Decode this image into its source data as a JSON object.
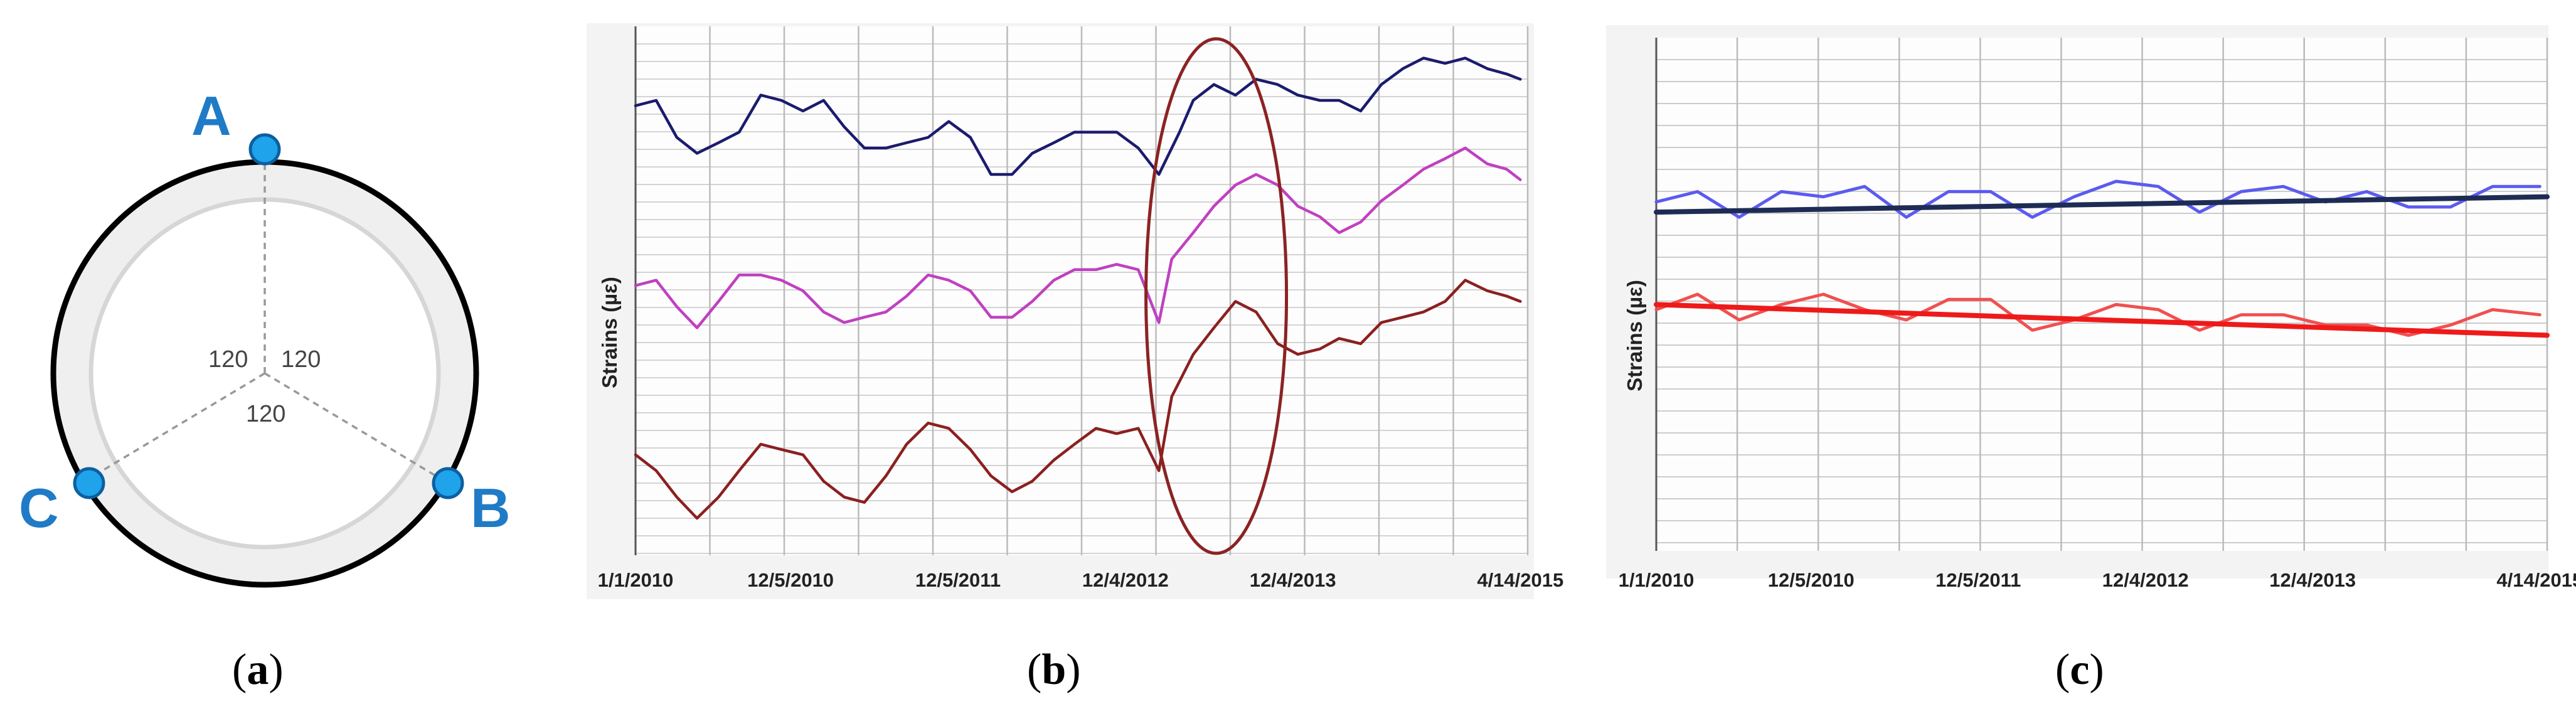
{
  "figure": {
    "panel_labels": [
      {
        "open": "(",
        "letter": "a",
        "close": ")"
      },
      {
        "open": "(",
        "letter": "b",
        "close": ")"
      },
      {
        "open": "(",
        "letter": "c",
        "close": ")"
      }
    ]
  },
  "sensor_ring": {
    "sensors": [
      "A",
      "B",
      "C"
    ],
    "angles": [
      "120",
      "120",
      "120"
    ],
    "sensor_color": "#1f7bc6",
    "ring_color": "#efefef"
  },
  "chart_data": [
    {
      "id": "b",
      "type": "line",
      "title": "",
      "xlabel": "",
      "ylabel": "Strains (µε)",
      "x_tick_labels": [
        "1/1/2010",
        "12/5/2010",
        "12/5/2011",
        "12/4/2012",
        "12/4/2013",
        "4/14/2015"
      ],
      "x_ticks": [
        "2010-01-01",
        "2010-12-05",
        "2011-12-05",
        "2012-12-04",
        "2013-12-04",
        "2015-04-14"
      ],
      "xlim": [
        "2010-01-01",
        "2015-04-30"
      ],
      "ylim": [
        0,
        100
      ],
      "y_tick_labels_shown": false,
      "grid": true,
      "legend": "none",
      "annotation": {
        "type": "ellipse",
        "center_x": "2013-06-20",
        "center_y": 49,
        "color": "#8b2323"
      },
      "series": [
        {
          "color": "#1b1b6e",
          "points": [
            [
              "2010-01-01",
              85
            ],
            [
              "2010-02-15",
              86
            ],
            [
              "2010-04-01",
              79
            ],
            [
              "2010-05-15",
              76
            ],
            [
              "2010-07-01",
              78
            ],
            [
              "2010-08-15",
              80
            ],
            [
              "2010-10-01",
              87
            ],
            [
              "2010-11-15",
              86
            ],
            [
              "2011-01-01",
              84
            ],
            [
              "2011-02-15",
              86
            ],
            [
              "2011-04-01",
              81
            ],
            [
              "2011-05-15",
              77
            ],
            [
              "2011-07-01",
              77
            ],
            [
              "2011-08-15",
              78
            ],
            [
              "2011-10-01",
              79
            ],
            [
              "2011-11-15",
              82
            ],
            [
              "2012-01-01",
              79
            ],
            [
              "2012-02-15",
              72
            ],
            [
              "2012-04-01",
              72
            ],
            [
              "2012-05-15",
              76
            ],
            [
              "2012-07-01",
              78
            ],
            [
              "2012-08-15",
              80
            ],
            [
              "2012-10-01",
              80
            ],
            [
              "2012-11-15",
              80
            ],
            [
              "2013-01-01",
              77
            ],
            [
              "2013-02-15",
              72
            ],
            [
              "2013-04-01",
              80
            ],
            [
              "2013-05-01",
              86
            ],
            [
              "2013-06-15",
              89
            ],
            [
              "2013-08-01",
              87
            ],
            [
              "2013-09-15",
              90
            ],
            [
              "2013-11-01",
              89
            ],
            [
              "2013-12-15",
              87
            ],
            [
              "2014-02-01",
              86
            ],
            [
              "2014-03-15",
              86
            ],
            [
              "2014-05-01",
              84
            ],
            [
              "2014-06-15",
              89
            ],
            [
              "2014-08-01",
              92
            ],
            [
              "2014-09-15",
              94
            ],
            [
              "2014-11-01",
              93
            ],
            [
              "2014-12-15",
              94
            ],
            [
              "2015-02-01",
              92
            ],
            [
              "2015-03-15",
              91
            ],
            [
              "2015-04-14",
              90
            ]
          ]
        },
        {
          "color": "#c040c0",
          "points": [
            [
              "2010-01-01",
              51
            ],
            [
              "2010-02-15",
              52
            ],
            [
              "2010-04-01",
              47
            ],
            [
              "2010-05-15",
              43
            ],
            [
              "2010-07-01",
              48
            ],
            [
              "2010-08-15",
              53
            ],
            [
              "2010-10-01",
              53
            ],
            [
              "2010-11-15",
              52
            ],
            [
              "2011-01-01",
              50
            ],
            [
              "2011-02-15",
              46
            ],
            [
              "2011-04-01",
              44
            ],
            [
              "2011-05-15",
              45
            ],
            [
              "2011-07-01",
              46
            ],
            [
              "2011-08-15",
              49
            ],
            [
              "2011-10-01",
              53
            ],
            [
              "2011-11-15",
              52
            ],
            [
              "2012-01-01",
              50
            ],
            [
              "2012-02-15",
              45
            ],
            [
              "2012-04-01",
              45
            ],
            [
              "2012-05-15",
              48
            ],
            [
              "2012-07-01",
              52
            ],
            [
              "2012-08-15",
              54
            ],
            [
              "2012-10-01",
              54
            ],
            [
              "2012-11-15",
              55
            ],
            [
              "2013-01-01",
              54
            ],
            [
              "2013-02-15",
              44
            ],
            [
              "2013-03-15",
              56
            ],
            [
              "2013-05-01",
              61
            ],
            [
              "2013-06-15",
              66
            ],
            [
              "2013-08-01",
              70
            ],
            [
              "2013-09-15",
              72
            ],
            [
              "2013-11-01",
              70
            ],
            [
              "2013-12-15",
              66
            ],
            [
              "2014-02-01",
              64
            ],
            [
              "2014-03-15",
              61
            ],
            [
              "2014-05-01",
              63
            ],
            [
              "2014-06-15",
              67
            ],
            [
              "2014-08-01",
              70
            ],
            [
              "2014-09-15",
              73
            ],
            [
              "2014-11-01",
              75
            ],
            [
              "2014-12-15",
              77
            ],
            [
              "2015-02-01",
              74
            ],
            [
              "2015-03-15",
              73
            ],
            [
              "2015-04-14",
              71
            ]
          ]
        },
        {
          "color": "#8b2020",
          "points": [
            [
              "2010-01-01",
              19
            ],
            [
              "2010-02-15",
              16
            ],
            [
              "2010-04-01",
              11
            ],
            [
              "2010-05-15",
              7
            ],
            [
              "2010-07-01",
              11
            ],
            [
              "2010-08-15",
              16
            ],
            [
              "2010-10-01",
              21
            ],
            [
              "2010-11-15",
              20
            ],
            [
              "2011-01-01",
              19
            ],
            [
              "2011-02-15",
              14
            ],
            [
              "2011-04-01",
              11
            ],
            [
              "2011-05-15",
              10
            ],
            [
              "2011-07-01",
              15
            ],
            [
              "2011-08-15",
              21
            ],
            [
              "2011-10-01",
              25
            ],
            [
              "2011-11-15",
              24
            ],
            [
              "2012-01-01",
              20
            ],
            [
              "2012-02-15",
              15
            ],
            [
              "2012-04-01",
              12
            ],
            [
              "2012-05-15",
              14
            ],
            [
              "2012-07-01",
              18
            ],
            [
              "2012-08-15",
              21
            ],
            [
              "2012-10-01",
              24
            ],
            [
              "2012-11-15",
              23
            ],
            [
              "2013-01-01",
              24
            ],
            [
              "2013-02-15",
              16
            ],
            [
              "2013-03-15",
              30
            ],
            [
              "2013-05-01",
              38
            ],
            [
              "2013-06-15",
              43
            ],
            [
              "2013-08-01",
              48
            ],
            [
              "2013-09-15",
              46
            ],
            [
              "2013-11-01",
              40
            ],
            [
              "2013-12-15",
              38
            ],
            [
              "2014-02-01",
              39
            ],
            [
              "2014-03-15",
              41
            ],
            [
              "2014-05-01",
              40
            ],
            [
              "2014-06-15",
              44
            ],
            [
              "2014-08-01",
              45
            ],
            [
              "2014-09-15",
              46
            ],
            [
              "2014-11-01",
              48
            ],
            [
              "2014-12-15",
              52
            ],
            [
              "2015-02-01",
              50
            ],
            [
              "2015-03-15",
              49
            ],
            [
              "2015-04-14",
              48
            ]
          ]
        }
      ]
    },
    {
      "id": "c",
      "type": "line",
      "title": "",
      "xlabel": "",
      "ylabel": "Strains (µε)",
      "x_tick_labels": [
        "1/1/2010",
        "12/5/2010",
        "12/5/2011",
        "12/4/2012",
        "12/4/2013",
        "4/14/2015"
      ],
      "x_ticks": [
        "2010-01-01",
        "2010-12-05",
        "2011-12-05",
        "2012-12-04",
        "2013-12-04",
        "2015-04-14"
      ],
      "xlim": [
        "2010-01-01",
        "2015-04-30"
      ],
      "ylim": [
        0,
        100
      ],
      "y_tick_labels_shown": false,
      "grid": true,
      "legend": "none",
      "series": [
        {
          "color": "#5b5bf0",
          "points": [
            [
              "2010-01-01",
              68
            ],
            [
              "2010-04-01",
              70
            ],
            [
              "2010-07-01",
              65
            ],
            [
              "2010-10-01",
              70
            ],
            [
              "2011-01-01",
              69
            ],
            [
              "2011-04-01",
              71
            ],
            [
              "2011-07-01",
              65
            ],
            [
              "2011-10-01",
              70
            ],
            [
              "2012-01-01",
              70
            ],
            [
              "2012-04-01",
              65
            ],
            [
              "2012-07-01",
              69
            ],
            [
              "2012-10-01",
              72
            ],
            [
              "2013-01-01",
              71
            ],
            [
              "2013-04-01",
              66
            ],
            [
              "2013-07-01",
              70
            ],
            [
              "2013-10-01",
              71
            ],
            [
              "2014-01-01",
              68
            ],
            [
              "2014-04-01",
              70
            ],
            [
              "2014-07-01",
              67
            ],
            [
              "2014-10-01",
              67
            ],
            [
              "2015-01-01",
              71
            ],
            [
              "2015-04-14",
              71
            ]
          ]
        },
        {
          "color": "#1e2c55",
          "points": [
            [
              "2010-01-01",
              66
            ],
            [
              "2015-04-30",
              69
            ]
          ]
        },
        {
          "color": "#f05050",
          "points": [
            [
              "2010-01-01",
              47
            ],
            [
              "2010-04-01",
              50
            ],
            [
              "2010-07-01",
              45
            ],
            [
              "2010-10-01",
              48
            ],
            [
              "2011-01-01",
              50
            ],
            [
              "2011-04-01",
              47
            ],
            [
              "2011-07-01",
              45
            ],
            [
              "2011-10-01",
              49
            ],
            [
              "2012-01-01",
              49
            ],
            [
              "2012-04-01",
              43
            ],
            [
              "2012-07-01",
              45
            ],
            [
              "2012-10-01",
              48
            ],
            [
              "2013-01-01",
              47
            ],
            [
              "2013-04-01",
              43
            ],
            [
              "2013-07-01",
              46
            ],
            [
              "2013-10-01",
              46
            ],
            [
              "2014-01-01",
              44
            ],
            [
              "2014-04-01",
              44
            ],
            [
              "2014-07-01",
              42
            ],
            [
              "2014-10-01",
              44
            ],
            [
              "2015-01-01",
              47
            ],
            [
              "2015-04-14",
              46
            ]
          ]
        },
        {
          "color": "#ee1a1a",
          "points": [
            [
              "2010-01-01",
              48
            ],
            [
              "2015-04-30",
              42
            ]
          ]
        }
      ]
    }
  ]
}
